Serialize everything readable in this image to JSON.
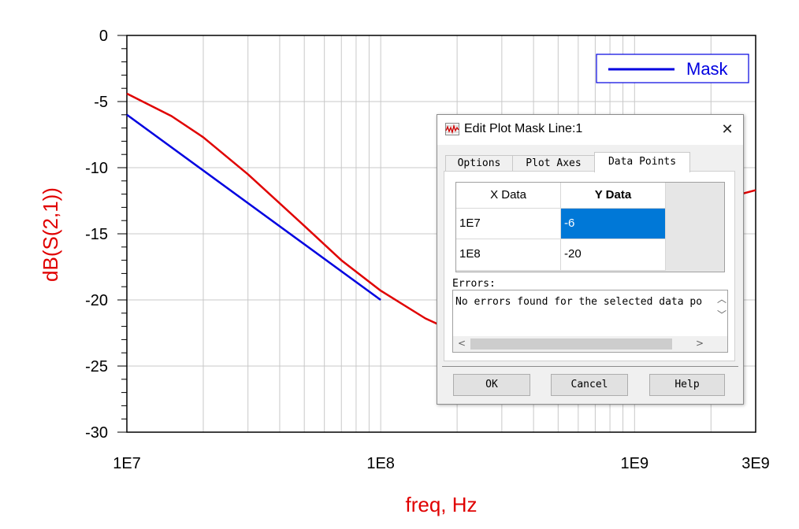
{
  "chart_data": {
    "type": "line",
    "xscale": "log",
    "xlim": [
      10000000.0,
      3000000000.0
    ],
    "ylim": [
      -30,
      0
    ],
    "x_tick_labels": [
      "1E7",
      "1E8",
      "1E9",
      "3E9"
    ],
    "x_tick_values": [
      10000000.0,
      100000000.0,
      1000000000.0,
      3000000000.0
    ],
    "y_tick_labels": [
      "0",
      "-5",
      "-10",
      "-15",
      "-20",
      "-25",
      "-30"
    ],
    "y_tick_values": [
      0,
      -5,
      -10,
      -15,
      -20,
      -25,
      -30
    ],
    "xlabel": "freq, Hz",
    "ylabel": "dB(S(2,1))",
    "grid": true,
    "legend_position": "top-right",
    "series": [
      {
        "color": "#e00000",
        "x": [
          10000000.0,
          15000000.0,
          20000000.0,
          30000000.0,
          50000000.0,
          70000000.0,
          100000000.0,
          150000000.0,
          200000000.0,
          220000000.0,
          2200000000.0,
          2500000000.0,
          3000000000.0
        ],
        "y": [
          -4.4,
          -6.1,
          -7.7,
          -10.5,
          -14.4,
          -17.0,
          -19.3,
          -21.4,
          -22.5,
          -22.6,
          -12.4,
          -12.1,
          -11.7
        ]
      },
      {
        "name": "Mask",
        "color": "#0000e0",
        "x": [
          10000000.0,
          100000000.0
        ],
        "y": [
          -6,
          -20
        ]
      }
    ]
  },
  "dialog": {
    "title": "Edit Plot Mask Line:1",
    "close_glyph": "✕",
    "tabs": [
      "Options",
      "Plot Axes",
      "Data Points"
    ],
    "active_tab": "Data Points",
    "table": {
      "headers": [
        "X Data",
        "Y Data"
      ],
      "rows": [
        [
          "1E7",
          "-6"
        ],
        [
          "1E8",
          "-20"
        ]
      ],
      "selected_cell": "Y Data row 1"
    },
    "errors_label": "Errors:",
    "errors_text": "No errors found for the selected data po",
    "buttons": {
      "ok": "OK",
      "cancel": "Cancel",
      "help": "Help"
    },
    "icons": {
      "app": "plot-mask-icon",
      "close": "close-icon"
    }
  }
}
